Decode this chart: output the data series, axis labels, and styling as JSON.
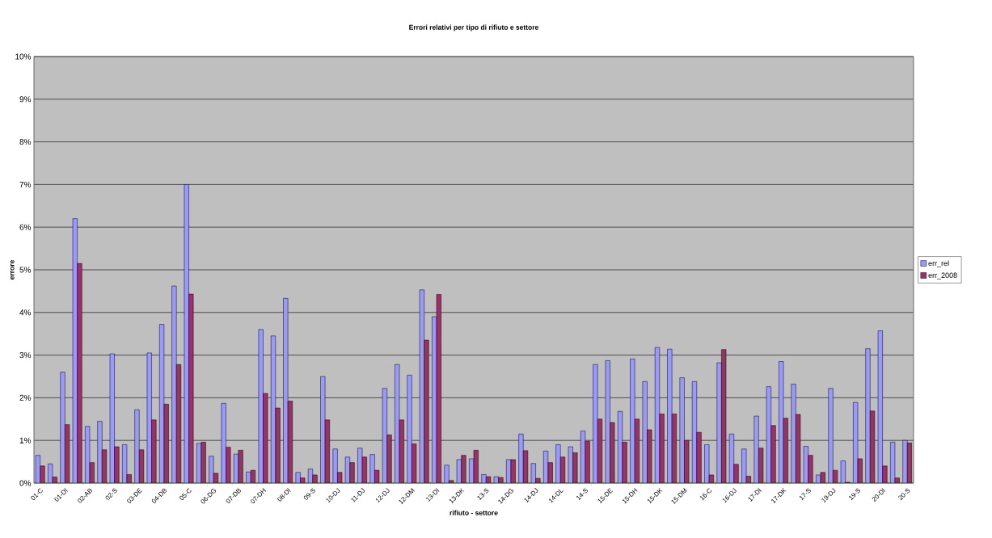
{
  "chart_data": {
    "type": "bar",
    "title": "Errori relativi per tipo di rifiuto e settore",
    "xlabel": "rifiuto - settore",
    "ylabel": "errore",
    "categories": [
      "01-C",
      null,
      "01-DI",
      null,
      "02-AB",
      null,
      "02-S",
      null,
      "03-DE",
      null,
      "04-DB",
      null,
      "05-C",
      null,
      "06-DG",
      null,
      "07-DB",
      null,
      "07-DH",
      null,
      "08-DI",
      null,
      "09-S",
      null,
      "10-DJ",
      null,
      "11-DJ",
      null,
      "12-DJ",
      null,
      "12-DM",
      null,
      "13-DI",
      null,
      "13-DK",
      null,
      "13-S",
      null,
      "14-DG",
      null,
      "14-DJ",
      null,
      "14-DL",
      null,
      "14-S",
      null,
      "15-DE",
      null,
      "15-DH",
      null,
      "15-DK",
      null,
      "15-DM",
      null,
      "16-C",
      null,
      "16-DJ",
      null,
      "17-DI",
      null,
      "17-DK",
      null,
      "17-S",
      null,
      "19-DJ",
      null,
      "19-S",
      null,
      "20-DI",
      null,
      "20-S"
    ],
    "series": [
      {
        "name": "err_rel",
        "color": "#9999ff",
        "values": [
          0.65,
          0.45,
          2.6,
          6.2,
          1.33,
          1.45,
          3.03,
          0.9,
          1.72,
          3.05,
          3.72,
          4.62,
          7.0,
          0.93,
          0.63,
          1.87,
          0.68,
          0.26,
          3.6,
          3.45,
          4.33,
          0.25,
          0.33,
          2.5,
          0.8,
          0.61,
          0.82,
          0.67,
          2.22,
          2.78,
          2.53,
          4.53,
          3.9,
          0.42,
          0.55,
          0.57,
          0.2,
          0.15,
          0.55,
          1.15,
          0.46,
          0.75,
          0.9,
          0.85,
          1.22,
          2.78,
          2.87,
          1.68,
          2.91,
          2.38,
          3.18,
          3.14,
          2.47,
          2.38,
          0.9,
          2.82,
          1.15,
          0.8,
          1.57,
          2.26,
          2.85,
          2.32,
          0.86,
          0.19,
          2.22,
          0.52,
          1.89,
          3.15,
          3.57,
          0.96,
          1.0
        ]
      },
      {
        "name": "err_2008",
        "color": "#993366",
        "values": [
          0.4,
          0.14,
          1.37,
          5.15,
          0.48,
          0.78,
          0.85,
          0.2,
          0.78,
          1.48,
          1.85,
          2.78,
          4.43,
          0.96,
          0.23,
          0.84,
          0.77,
          0.3,
          2.1,
          1.76,
          1.92,
          0.12,
          0.19,
          1.48,
          0.25,
          0.48,
          0.61,
          0.3,
          1.13,
          1.48,
          0.92,
          3.35,
          4.42,
          0.06,
          0.65,
          0.77,
          0.15,
          0.13,
          0.55,
          0.76,
          0.11,
          0.48,
          0.61,
          0.71,
          0.98,
          1.5,
          1.42,
          0.96,
          1.5,
          1.25,
          1.62,
          1.62,
          1.0,
          1.19,
          0.19,
          3.13,
          0.44,
          0.16,
          0.82,
          1.35,
          1.52,
          1.61,
          0.65,
          0.25,
          0.3,
          0.02,
          0.57,
          1.69,
          0.4,
          0.12,
          0.94
        ]
      }
    ],
    "ylim": [
      0,
      10
    ],
    "yticks": [
      {
        "value": 0,
        "label": "0%"
      },
      {
        "value": 1,
        "label": "1%"
      },
      {
        "value": 2,
        "label": "2%"
      },
      {
        "value": 3,
        "label": "3%"
      },
      {
        "value": 4,
        "label": "4%"
      },
      {
        "value": 5,
        "label": "5%"
      },
      {
        "value": 6,
        "label": "6%"
      },
      {
        "value": 7,
        "label": "7%"
      },
      {
        "value": 8,
        "label": "8%"
      },
      {
        "value": 9,
        "label": "9%"
      },
      {
        "value": 10,
        "label": "10%"
      }
    ],
    "grid": "y",
    "legend": "right"
  }
}
